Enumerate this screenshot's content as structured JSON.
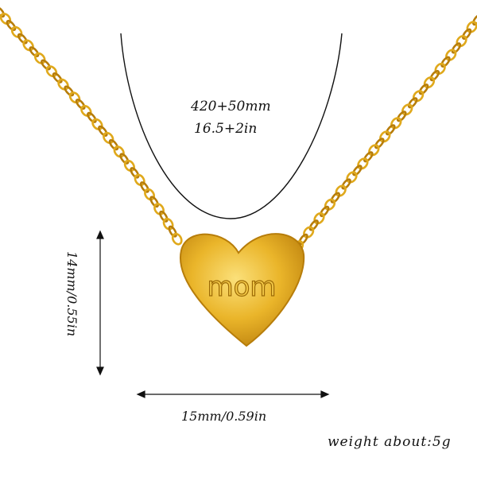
{
  "product": {
    "engraving": "mom",
    "chain_length": "420+50mm",
    "chain_length_in": "16.5+2in",
    "height": "14mm/0.55in",
    "width": "15mm/0.59in",
    "weight": "weight about:5g"
  },
  "colors": {
    "gold": "#e0a91c",
    "gold_light": "#f7d45a",
    "gold_dark": "#b77d0a",
    "ink": "#111111"
  }
}
